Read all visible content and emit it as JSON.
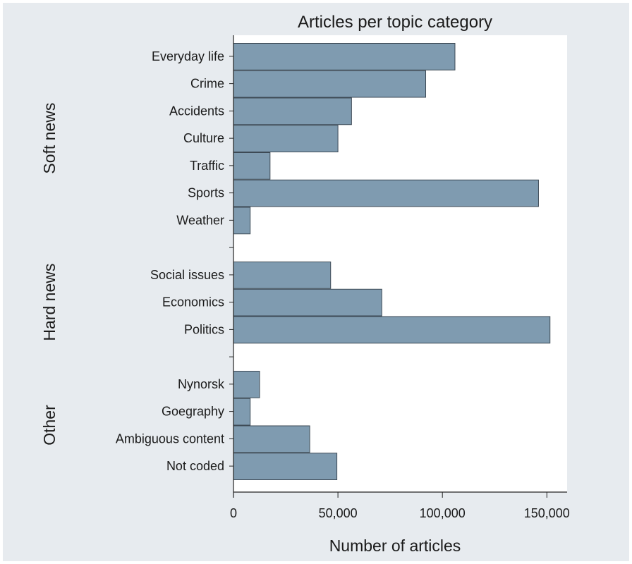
{
  "chart_data": {
    "type": "bar",
    "orientation": "horizontal",
    "title": "Articles per topic category",
    "xlabel": "Number of articles",
    "ylabel": "",
    "xlim": [
      0,
      160000
    ],
    "xticks": [
      0,
      50000,
      100000,
      150000
    ],
    "xtick_labels": [
      "0",
      "50,000",
      "100,000",
      "150,000"
    ],
    "grid": false,
    "bar_color": "#7f9bb0",
    "background_color": "#e7ebef",
    "groups": [
      {
        "label": "Soft news",
        "categories": [
          {
            "label": "Everyday life",
            "value": 106000
          },
          {
            "label": "Crime",
            "value": 92000
          },
          {
            "label": "Accidents",
            "value": 56500
          },
          {
            "label": "Culture",
            "value": 50000
          },
          {
            "label": "Traffic",
            "value": 17500
          },
          {
            "label": "Sports",
            "value": 146000
          },
          {
            "label": "Weather",
            "value": 8000
          }
        ]
      },
      {
        "label": "Hard news",
        "categories": [
          {
            "label": "Social issues",
            "value": 46500
          },
          {
            "label": "Economics",
            "value": 71000
          },
          {
            "label": "Politics",
            "value": 151500
          }
        ]
      },
      {
        "label": "Other",
        "categories": [
          {
            "label": "Nynorsk",
            "value": 12500
          },
          {
            "label": "Goegraphy",
            "value": 8000
          },
          {
            "label": "Ambiguous content",
            "value": 36500
          },
          {
            "label": "Not coded",
            "value": 49500
          }
        ]
      }
    ]
  }
}
